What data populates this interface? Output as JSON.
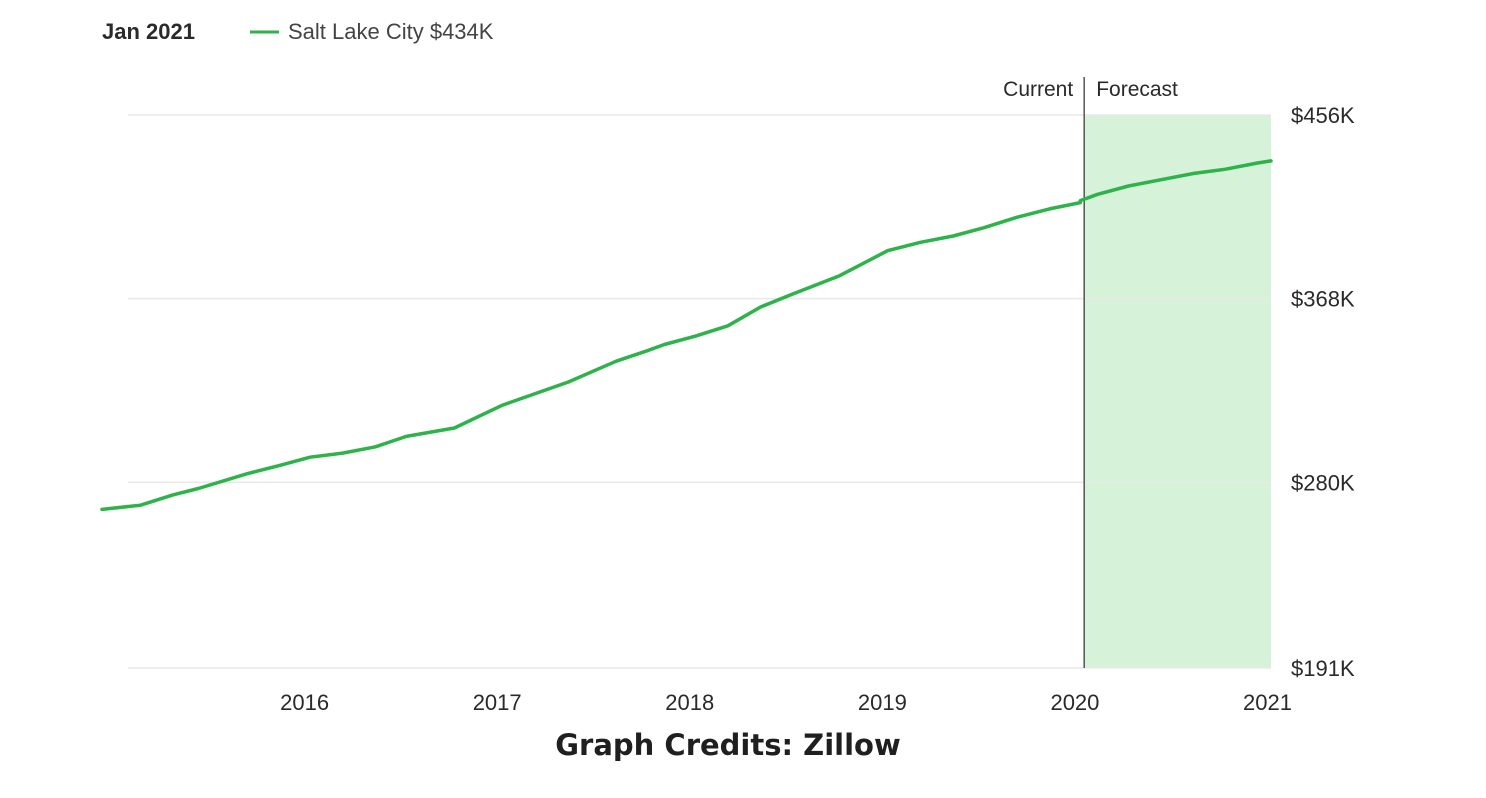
{
  "header": {
    "date_label": "Jan 2021",
    "legend_label": "Salt Lake City $434K"
  },
  "colors": {
    "line": "#2db34a",
    "forecast_fill": "#d6f2d9",
    "gridline": "#e9e9e9",
    "divider": "#555555",
    "text": "#2a2a2a"
  },
  "chart_data": {
    "type": "line",
    "x_unit": "year",
    "y_unit": "thousand USD",
    "xlim": [
      2015.0,
      2021.07
    ],
    "ylim": [
      191,
      456
    ],
    "y_ticks": [
      {
        "value": 456,
        "label": "$456K"
      },
      {
        "value": 368,
        "label": "$368K"
      },
      {
        "value": 280,
        "label": "$280K"
      },
      {
        "value": 191,
        "label": "$191K"
      }
    ],
    "x_ticks": [
      {
        "value": 2016,
        "label": "2016"
      },
      {
        "value": 2017,
        "label": "2017"
      },
      {
        "value": 2018,
        "label": "2018"
      },
      {
        "value": 2019,
        "label": "2019"
      },
      {
        "value": 2020,
        "label": "2020"
      },
      {
        "value": 2021,
        "label": "2021"
      }
    ],
    "current_label": "Current",
    "forecast_label": "Forecast",
    "forecast_start": 2020.1,
    "series": [
      {
        "name": "Salt Lake City",
        "current": {
          "x": [
            2015.0,
            2015.2,
            2015.37,
            2015.5,
            2015.75,
            2015.92,
            2016.08,
            2016.25,
            2016.42,
            2016.58,
            2016.83,
            2017.08,
            2017.42,
            2017.67,
            2017.83,
            2017.92,
            2018.08,
            2018.25,
            2018.42,
            2018.58,
            2018.83,
            2019.08,
            2019.25,
            2019.42,
            2019.58,
            2019.75,
            2019.92,
            2020.08
          ],
          "y": [
            267,
            269,
            274,
            277,
            284,
            288,
            292,
            294,
            297,
            302,
            306,
            317,
            328,
            338,
            343,
            346,
            350,
            355,
            364,
            370,
            379,
            391,
            395,
            398,
            402,
            407,
            411,
            414
          ]
        },
        "forecast": {
          "x": [
            2020.08,
            2020.17,
            2020.33,
            2020.5,
            2020.67,
            2020.83,
            2021.0,
            2021.07
          ],
          "y": [
            415,
            418,
            422,
            425,
            428,
            430,
            433,
            434
          ]
        }
      }
    ]
  },
  "credits": "Graph Credits: Zillow"
}
